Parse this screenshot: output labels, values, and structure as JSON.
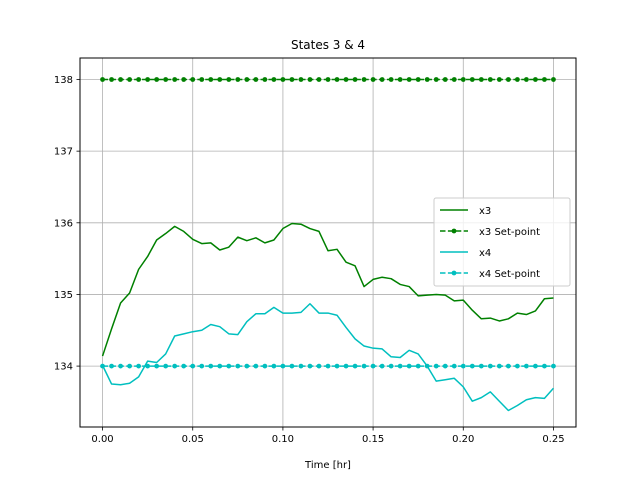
{
  "chart_data": {
    "type": "line",
    "title": "States 3 & 4",
    "xlabel": "Time [hr]",
    "ylabel": "",
    "xlim": [
      -0.0125,
      0.2625
    ],
    "ylim": [
      133.15,
      138.3
    ],
    "xticks": [
      0.0,
      0.05,
      0.1,
      0.15,
      0.2,
      0.25
    ],
    "xtick_labels": [
      "0.00",
      "0.05",
      "0.10",
      "0.15",
      "0.20",
      "0.25"
    ],
    "yticks": [
      134,
      135,
      136,
      137,
      138
    ],
    "ytick_labels": [
      "134",
      "135",
      "136",
      "137",
      "138"
    ],
    "grid": true,
    "legend_position": "center-right",
    "series": [
      {
        "name": "x3",
        "color": "#008000",
        "style": "solid",
        "marker": "none",
        "x": [
          0.0,
          0.005,
          0.01,
          0.015,
          0.02,
          0.025,
          0.03,
          0.035,
          0.04,
          0.045,
          0.05,
          0.055,
          0.06,
          0.065,
          0.07,
          0.075,
          0.08,
          0.085,
          0.09,
          0.095,
          0.1,
          0.105,
          0.11,
          0.115,
          0.12,
          0.125,
          0.13,
          0.135,
          0.14,
          0.145,
          0.15,
          0.155,
          0.16,
          0.165,
          0.17,
          0.175,
          0.18,
          0.185,
          0.19,
          0.195,
          0.2,
          0.205,
          0.21,
          0.215,
          0.22,
          0.225,
          0.23,
          0.235,
          0.24,
          0.245,
          0.25
        ],
        "y": [
          134.14,
          134.52,
          134.88,
          135.02,
          135.35,
          135.53,
          135.76,
          135.85,
          135.95,
          135.88,
          135.77,
          135.71,
          135.72,
          135.62,
          135.66,
          135.8,
          135.75,
          135.79,
          135.72,
          135.76,
          135.92,
          135.99,
          135.98,
          135.92,
          135.88,
          135.61,
          135.63,
          135.45,
          135.4,
          135.11,
          135.21,
          135.24,
          135.22,
          135.14,
          135.11,
          134.98,
          134.99,
          135.0,
          134.99,
          134.91,
          134.92,
          134.78,
          134.66,
          134.67,
          134.63,
          134.66,
          134.74,
          134.72,
          134.77,
          134.94,
          134.95
        ]
      },
      {
        "name": "x3 Set-point",
        "color": "#008000",
        "style": "dashed",
        "marker": "circle",
        "x": [
          0.0,
          0.005,
          0.01,
          0.015,
          0.02,
          0.025,
          0.03,
          0.035,
          0.04,
          0.045,
          0.05,
          0.055,
          0.06,
          0.065,
          0.07,
          0.075,
          0.08,
          0.085,
          0.09,
          0.095,
          0.1,
          0.105,
          0.11,
          0.115,
          0.12,
          0.125,
          0.13,
          0.135,
          0.14,
          0.145,
          0.15,
          0.155,
          0.16,
          0.165,
          0.17,
          0.175,
          0.18,
          0.185,
          0.19,
          0.195,
          0.2,
          0.205,
          0.21,
          0.215,
          0.22,
          0.225,
          0.23,
          0.235,
          0.24,
          0.245,
          0.25
        ],
        "y": [
          138,
          138,
          138,
          138,
          138,
          138,
          138,
          138,
          138,
          138,
          138,
          138,
          138,
          138,
          138,
          138,
          138,
          138,
          138,
          138,
          138,
          138,
          138,
          138,
          138,
          138,
          138,
          138,
          138,
          138,
          138,
          138,
          138,
          138,
          138,
          138,
          138,
          138,
          138,
          138,
          138,
          138,
          138,
          138,
          138,
          138,
          138,
          138,
          138,
          138,
          138
        ]
      },
      {
        "name": "x4",
        "color": "#00bfbf",
        "style": "solid",
        "marker": "none",
        "x": [
          0.0,
          0.005,
          0.01,
          0.015,
          0.02,
          0.025,
          0.03,
          0.035,
          0.04,
          0.045,
          0.05,
          0.055,
          0.06,
          0.065,
          0.07,
          0.075,
          0.08,
          0.085,
          0.09,
          0.095,
          0.1,
          0.105,
          0.11,
          0.115,
          0.12,
          0.125,
          0.13,
          0.135,
          0.14,
          0.145,
          0.15,
          0.155,
          0.16,
          0.165,
          0.17,
          0.175,
          0.18,
          0.185,
          0.19,
          0.195,
          0.2,
          0.205,
          0.21,
          0.215,
          0.22,
          0.225,
          0.23,
          0.235,
          0.24,
          0.245,
          0.25
        ],
        "y": [
          134.01,
          133.75,
          133.74,
          133.76,
          133.85,
          134.07,
          134.05,
          134.17,
          134.42,
          134.45,
          134.48,
          134.5,
          134.58,
          134.55,
          134.45,
          134.44,
          134.62,
          134.73,
          134.73,
          134.82,
          134.74,
          134.74,
          134.75,
          134.87,
          134.74,
          134.74,
          134.71,
          134.54,
          134.38,
          134.28,
          134.25,
          134.24,
          134.13,
          134.12,
          134.22,
          134.17,
          134.0,
          133.79,
          133.81,
          133.83,
          133.71,
          133.51,
          133.56,
          133.64,
          133.51,
          133.38,
          133.45,
          133.53,
          133.56,
          133.55,
          133.69
        ]
      },
      {
        "name": "x4 Set-point",
        "color": "#00bfbf",
        "style": "dashed",
        "marker": "circle",
        "x": [
          0.0,
          0.005,
          0.01,
          0.015,
          0.02,
          0.025,
          0.03,
          0.035,
          0.04,
          0.045,
          0.05,
          0.055,
          0.06,
          0.065,
          0.07,
          0.075,
          0.08,
          0.085,
          0.09,
          0.095,
          0.1,
          0.105,
          0.11,
          0.115,
          0.12,
          0.125,
          0.13,
          0.135,
          0.14,
          0.145,
          0.15,
          0.155,
          0.16,
          0.165,
          0.17,
          0.175,
          0.18,
          0.185,
          0.19,
          0.195,
          0.2,
          0.205,
          0.21,
          0.215,
          0.22,
          0.225,
          0.23,
          0.235,
          0.24,
          0.245,
          0.25
        ],
        "y": [
          134,
          134,
          134,
          134,
          134,
          134,
          134,
          134,
          134,
          134,
          134,
          134,
          134,
          134,
          134,
          134,
          134,
          134,
          134,
          134,
          134,
          134,
          134,
          134,
          134,
          134,
          134,
          134,
          134,
          134,
          134,
          134,
          134,
          134,
          134,
          134,
          134,
          134,
          134,
          134,
          134,
          134,
          134,
          134,
          134,
          134,
          134,
          134,
          134,
          134,
          134
        ]
      }
    ]
  }
}
